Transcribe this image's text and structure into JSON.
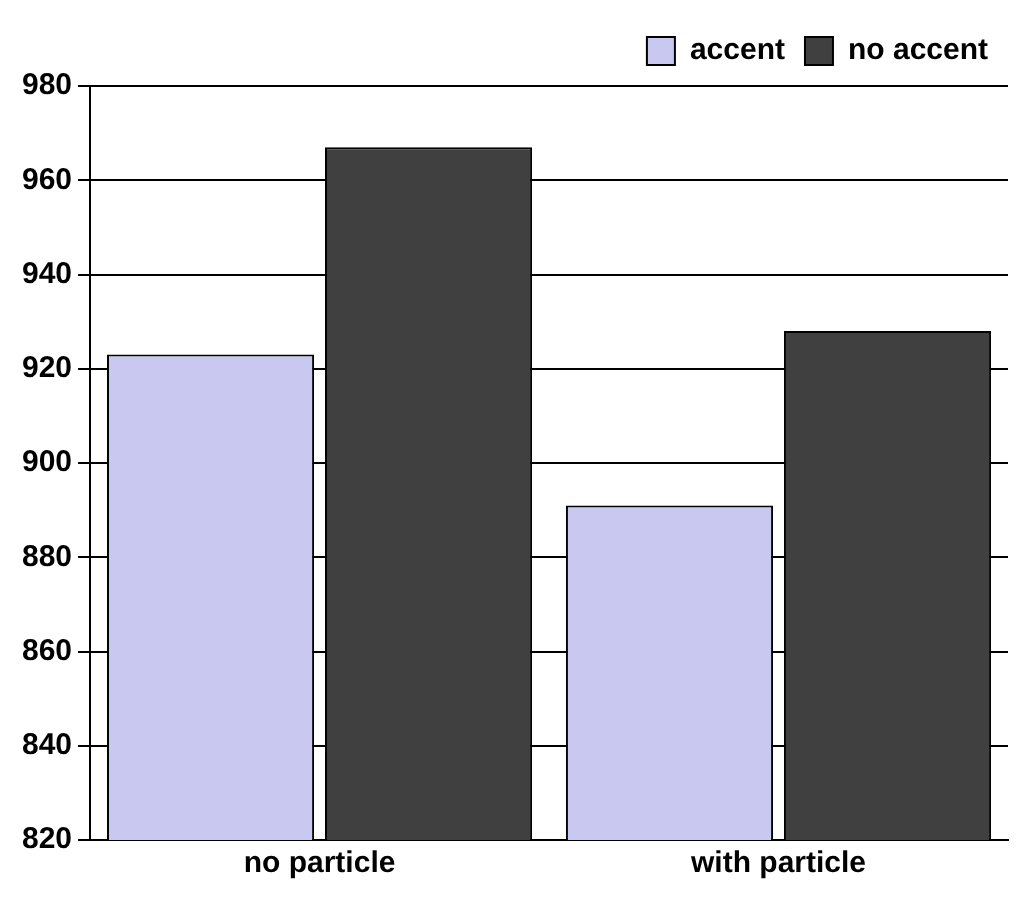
{
  "chart_data": {
    "type": "bar",
    "categories": [
      "no particle",
      "with particle"
    ],
    "series": [
      {
        "name": "accent",
        "color": "#c8c8f0",
        "values": [
          923,
          891
        ]
      },
      {
        "name": "no accent",
        "color": "#404040",
        "values": [
          967,
          928
        ]
      }
    ],
    "ylim": [
      820,
      980
    ],
    "yticks": [
      820,
      840,
      860,
      880,
      900,
      920,
      940,
      960,
      980
    ],
    "grid": "y",
    "legend": "top right"
  }
}
